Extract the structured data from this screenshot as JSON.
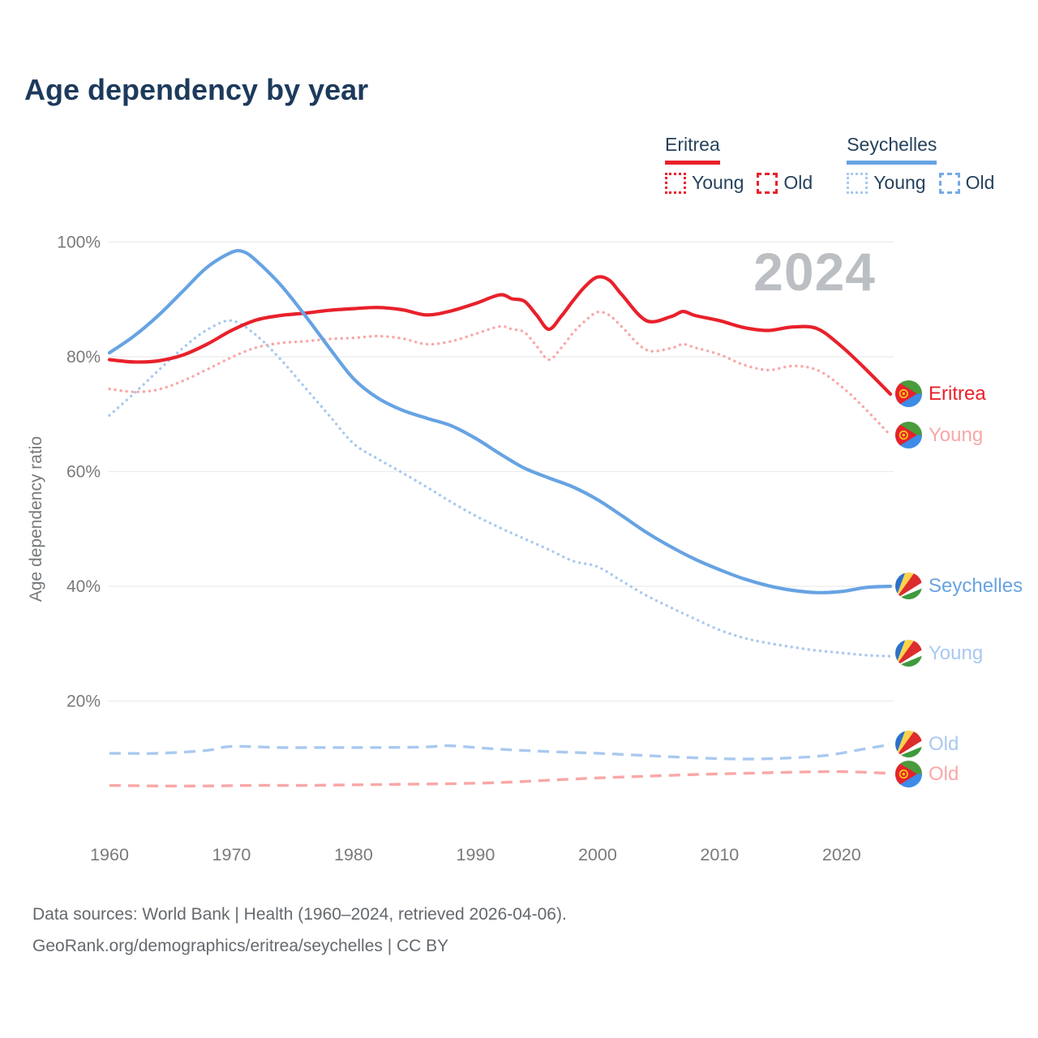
{
  "header": {
    "title": "Age dependency by year"
  },
  "legend": {
    "eritrea": {
      "label": "Eritrea",
      "young": "Young",
      "old": "Old"
    },
    "seychelles": {
      "label": "Seychelles",
      "young": "Young",
      "old": "Old"
    }
  },
  "end_labels": {
    "eritrea_total": "Eritrea",
    "eritrea_young": "Young",
    "eritrea_old": "Old",
    "seychelles_total": "Seychelles",
    "seychelles_young": "Young",
    "seychelles_old": "Old"
  },
  "footer": {
    "line1": "Data sources: World Bank | Health (1960–2024, retrieved 2026-04-06).",
    "line2": "GeoRank.org/demographics/eritrea/seychelles | CC BY"
  },
  "colors": {
    "eritrea": "#e8212b",
    "eritrea_light": "#f9a7a7",
    "seychelles": "#67a3e3",
    "seychelles_light": "#a9c9ef",
    "title_navy": "#1d3a5c",
    "axis_gray": "#7a7a7a",
    "grid": "#ececec",
    "watermark_gray": "#bbbfc3"
  },
  "chart_data": {
    "type": "line",
    "title": "Age dependency by year",
    "ylabel": "Age dependency ratio",
    "watermark": "2024",
    "xlim": [
      1960,
      2024
    ],
    "ylim": [
      0,
      105
    ],
    "grid": "horizontal",
    "legend_position": "top-right",
    "yticks": [
      {
        "value": 100,
        "label": "100%"
      },
      {
        "value": 80,
        "label": "80%"
      },
      {
        "value": 60,
        "label": "60%"
      },
      {
        "value": 40,
        "label": "40%"
      },
      {
        "value": 20,
        "label": "20%"
      }
    ],
    "xticks": [
      {
        "value": 1960,
        "label": "1960"
      },
      {
        "value": 1970,
        "label": "1970"
      },
      {
        "value": 1980,
        "label": "1980"
      },
      {
        "value": 1990,
        "label": "1990"
      },
      {
        "value": 2000,
        "label": "2000"
      },
      {
        "value": 2010,
        "label": "2010"
      },
      {
        "value": 2020,
        "label": "2020"
      }
    ],
    "series": [
      {
        "id": "eritrea-young",
        "country": "Eritrea",
        "measure": "Young",
        "color": "#f9a7a7",
        "style": "dotted",
        "width": 3.4,
        "points": [
          [
            1960,
            74.4
          ],
          [
            1962,
            73.9
          ],
          [
            1964,
            74.3
          ],
          [
            1966,
            75.8
          ],
          [
            1968,
            77.8
          ],
          [
            1970,
            79.9
          ],
          [
            1972,
            81.6
          ],
          [
            1974,
            82.4
          ],
          [
            1976,
            82.7
          ],
          [
            1978,
            83.1
          ],
          [
            1980,
            83.3
          ],
          [
            1982,
            83.6
          ],
          [
            1984,
            83.2
          ],
          [
            1986,
            82.2
          ],
          [
            1988,
            82.7
          ],
          [
            1990,
            84.0
          ],
          [
            1992,
            85.3
          ],
          [
            1993,
            84.8
          ],
          [
            1994,
            84.3
          ],
          [
            1995,
            81.9
          ],
          [
            1996,
            79.5
          ],
          [
            1997,
            81.5
          ],
          [
            1998,
            84.2
          ],
          [
            1999,
            86.3
          ],
          [
            2000,
            87.8
          ],
          [
            2001,
            87.2
          ],
          [
            2002,
            85.2
          ],
          [
            2004,
            81.2
          ],
          [
            2006,
            81.5
          ],
          [
            2007,
            82.2
          ],
          [
            2008,
            81.6
          ],
          [
            2010,
            80.4
          ],
          [
            2012,
            78.6
          ],
          [
            2014,
            77.7
          ],
          [
            2016,
            78.4
          ],
          [
            2018,
            77.7
          ],
          [
            2020,
            74.8
          ],
          [
            2022,
            70.8
          ],
          [
            2024,
            66.3
          ]
        ]
      },
      {
        "id": "seychelles-young",
        "country": "Seychelles",
        "measure": "Young",
        "color": "#a9c9ef",
        "style": "dotted",
        "width": 3.4,
        "points": [
          [
            1960,
            69.8
          ],
          [
            1962,
            73.6
          ],
          [
            1964,
            77.6
          ],
          [
            1966,
            81.5
          ],
          [
            1968,
            84.7
          ],
          [
            1970,
            86.3
          ],
          [
            1972,
            83.8
          ],
          [
            1974,
            79.6
          ],
          [
            1976,
            74.7
          ],
          [
            1978,
            69.8
          ],
          [
            1980,
            64.9
          ],
          [
            1982,
            62.2
          ],
          [
            1984,
            59.8
          ],
          [
            1986,
            57.3
          ],
          [
            1988,
            54.7
          ],
          [
            1990,
            52.3
          ],
          [
            1992,
            50.2
          ],
          [
            1994,
            48.3
          ],
          [
            1996,
            46.4
          ],
          [
            1998,
            44.4
          ],
          [
            2000,
            43.4
          ],
          [
            2002,
            40.9
          ],
          [
            2004,
            38.4
          ],
          [
            2006,
            36.3
          ],
          [
            2008,
            34.3
          ],
          [
            2010,
            32.4
          ],
          [
            2012,
            31.0
          ],
          [
            2014,
            30.1
          ],
          [
            2016,
            29.4
          ],
          [
            2018,
            28.8
          ],
          [
            2020,
            28.4
          ],
          [
            2022,
            28.0
          ],
          [
            2024,
            27.8
          ]
        ]
      },
      {
        "id": "eritrea-old",
        "country": "Eritrea",
        "measure": "Old",
        "color": "#f9a7a7",
        "style": "dashed",
        "width": 3.4,
        "points": [
          [
            1960,
            5.3
          ],
          [
            1964,
            5.2
          ],
          [
            1968,
            5.2
          ],
          [
            1972,
            5.3
          ],
          [
            1976,
            5.3
          ],
          [
            1980,
            5.4
          ],
          [
            1984,
            5.5
          ],
          [
            1988,
            5.6
          ],
          [
            1992,
            5.8
          ],
          [
            1996,
            6.2
          ],
          [
            2000,
            6.6
          ],
          [
            2004,
            6.9
          ],
          [
            2008,
            7.2
          ],
          [
            2012,
            7.4
          ],
          [
            2016,
            7.6
          ],
          [
            2020,
            7.7
          ],
          [
            2024,
            7.4
          ]
        ]
      },
      {
        "id": "seychelles-old",
        "country": "Seychelles",
        "measure": "Old",
        "color": "#a9c9ef",
        "style": "dashed",
        "width": 3.4,
        "points": [
          [
            1960,
            10.9
          ],
          [
            1964,
            10.9
          ],
          [
            1968,
            11.4
          ],
          [
            1970,
            12.1
          ],
          [
            1974,
            11.9
          ],
          [
            1978,
            11.9
          ],
          [
            1982,
            11.9
          ],
          [
            1986,
            12.0
          ],
          [
            1988,
            12.2
          ],
          [
            1992,
            11.6
          ],
          [
            1996,
            11.2
          ],
          [
            2000,
            10.9
          ],
          [
            2004,
            10.5
          ],
          [
            2008,
            10.1
          ],
          [
            2012,
            9.9
          ],
          [
            2016,
            10.1
          ],
          [
            2019,
            10.6
          ],
          [
            2022,
            11.7
          ],
          [
            2024,
            12.4
          ]
        ]
      },
      {
        "id": "eritrea-total",
        "country": "Eritrea",
        "measure": "Total",
        "color": "#e8212b",
        "style": "solid",
        "width": 4.2,
        "points": [
          [
            1960,
            79.5
          ],
          [
            1962,
            79.1
          ],
          [
            1964,
            79.3
          ],
          [
            1966,
            80.3
          ],
          [
            1968,
            82.2
          ],
          [
            1970,
            84.6
          ],
          [
            1972,
            86.4
          ],
          [
            1974,
            87.2
          ],
          [
            1976,
            87.6
          ],
          [
            1978,
            88.1
          ],
          [
            1980,
            88.4
          ],
          [
            1982,
            88.6
          ],
          [
            1984,
            88.2
          ],
          [
            1986,
            87.3
          ],
          [
            1988,
            88.0
          ],
          [
            1990,
            89.3
          ],
          [
            1992,
            90.8
          ],
          [
            1993,
            90.1
          ],
          [
            1994,
            89.7
          ],
          [
            1995,
            87.3
          ],
          [
            1996,
            84.8
          ],
          [
            1997,
            87.0
          ],
          [
            1998,
            89.8
          ],
          [
            1999,
            92.3
          ],
          [
            2000,
            93.9
          ],
          [
            2001,
            93.3
          ],
          [
            2002,
            90.8
          ],
          [
            2004,
            86.3
          ],
          [
            2006,
            87.0
          ],
          [
            2007,
            87.9
          ],
          [
            2008,
            87.2
          ],
          [
            2010,
            86.3
          ],
          [
            2012,
            85.1
          ],
          [
            2014,
            84.6
          ],
          [
            2016,
            85.2
          ],
          [
            2018,
            84.9
          ],
          [
            2020,
            81.8
          ],
          [
            2022,
            77.8
          ],
          [
            2024,
            73.5
          ]
        ]
      },
      {
        "id": "seychelles-total",
        "country": "Seychelles",
        "measure": "Total",
        "color": "#67a3e3",
        "style": "solid",
        "width": 4.2,
        "points": [
          [
            1960,
            80.7
          ],
          [
            1962,
            83.6
          ],
          [
            1964,
            87.2
          ],
          [
            1966,
            91.4
          ],
          [
            1968,
            95.6
          ],
          [
            1970,
            98.2
          ],
          [
            1971,
            98.3
          ],
          [
            1972,
            96.8
          ],
          [
            1974,
            92.6
          ],
          [
            1976,
            87.3
          ],
          [
            1978,
            81.6
          ],
          [
            1980,
            76.2
          ],
          [
            1982,
            72.8
          ],
          [
            1984,
            70.7
          ],
          [
            1986,
            69.3
          ],
          [
            1988,
            68.0
          ],
          [
            1990,
            65.8
          ],
          [
            1992,
            63.1
          ],
          [
            1994,
            60.6
          ],
          [
            1996,
            58.9
          ],
          [
            1998,
            57.3
          ],
          [
            2000,
            55.1
          ],
          [
            2002,
            52.3
          ],
          [
            2004,
            49.4
          ],
          [
            2006,
            46.9
          ],
          [
            2008,
            44.7
          ],
          [
            2010,
            42.9
          ],
          [
            2012,
            41.3
          ],
          [
            2014,
            40.1
          ],
          [
            2016,
            39.3
          ],
          [
            2018,
            38.9
          ],
          [
            2020,
            39.1
          ],
          [
            2022,
            39.8
          ],
          [
            2024,
            40.0
          ]
        ]
      }
    ]
  }
}
